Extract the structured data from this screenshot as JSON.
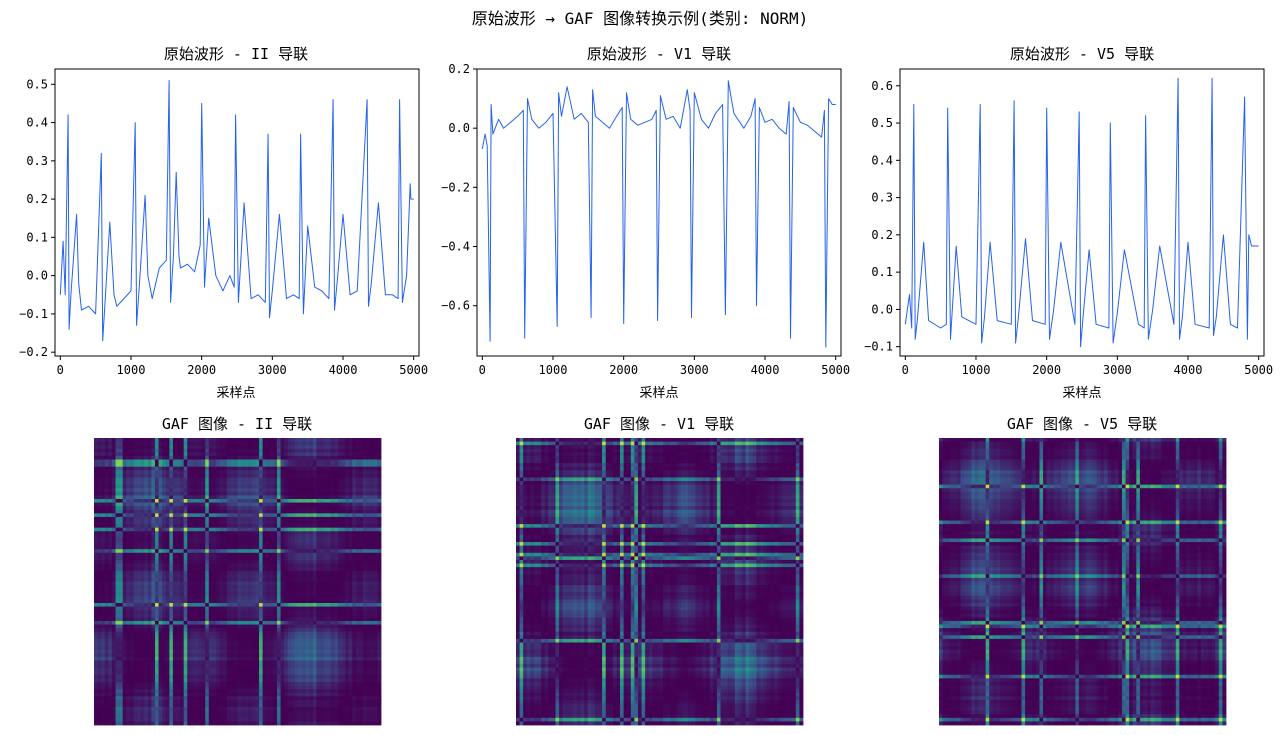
{
  "suptitle": "原始波形 → GAF 图像转换示例(类别: NORM)",
  "colors": {
    "line": "#2563eb",
    "viridis": [
      "#440154",
      "#3b528b",
      "#21918c",
      "#5ec962",
      "#fde725"
    ]
  },
  "chart_data": [
    {
      "type": "line",
      "title": "原始波形 - II 导联",
      "xlabel": "采样点",
      "ylabel": "",
      "xlim": [
        -75,
        5075
      ],
      "ylim": [
        -0.21,
        0.54
      ],
      "xticks": [
        0,
        1000,
        2000,
        3000,
        4000,
        5000
      ],
      "yticks": [
        -0.2,
        -0.1,
        0.0,
        0.1,
        0.2,
        0.3,
        0.4,
        0.5
      ],
      "ytick_labels": [
        "−0.2",
        "−0.1",
        "0.0",
        "0.1",
        "0.2",
        "0.3",
        "0.4",
        "0.5"
      ],
      "grid": false,
      "series": [
        {
          "x": [
            0,
            40,
            70,
            110,
            125,
            150,
            230,
            260,
            300,
            400,
            500,
            580,
            600,
            640,
            700,
            760,
            800,
            900,
            1000,
            1060,
            1080,
            1120,
            1200,
            1240,
            1300,
            1400,
            1500,
            1540,
            1560,
            1600,
            1640,
            1680,
            1700,
            1800,
            1900,
            1980,
            2000,
            2040,
            2100,
            2200,
            2300,
            2400,
            2460,
            2480,
            2520,
            2600,
            2700,
            2800,
            2900,
            2940,
            2960,
            3000,
            3100,
            3200,
            3300,
            3380,
            3400,
            3440,
            3500,
            3600,
            3700,
            3800,
            3860,
            3880,
            3920,
            4000,
            4100,
            4200,
            4340,
            4360,
            4400,
            4500,
            4600,
            4700,
            4780,
            4800,
            4840,
            4900,
            4950,
            4960,
            5000
          ],
          "y": [
            -0.05,
            0.09,
            -0.05,
            0.42,
            -0.14,
            -0.05,
            0.16,
            -0.02,
            -0.09,
            -0.08,
            -0.1,
            0.32,
            -0.17,
            -0.05,
            0.14,
            -0.05,
            -0.08,
            -0.06,
            -0.04,
            0.4,
            -0.13,
            -0.02,
            0.21,
            0.0,
            -0.06,
            0.02,
            0.04,
            0.51,
            -0.07,
            0.05,
            0.27,
            0.05,
            0.02,
            0.03,
            0.01,
            0.08,
            0.45,
            -0.03,
            0.15,
            0.0,
            -0.04,
            0.0,
            -0.03,
            0.42,
            -0.07,
            0.19,
            -0.06,
            -0.05,
            -0.07,
            0.37,
            -0.11,
            -0.04,
            0.16,
            -0.06,
            -0.05,
            -0.06,
            0.37,
            -0.1,
            0.13,
            -0.03,
            -0.04,
            -0.06,
            0.46,
            -0.09,
            -0.01,
            0.16,
            -0.05,
            -0.04,
            0.46,
            -0.08,
            -0.02,
            0.19,
            -0.05,
            -0.05,
            -0.06,
            0.46,
            -0.07,
            0.0,
            0.24,
            0.2,
            0.2
          ]
        }
      ]
    },
    {
      "type": "line",
      "title": "原始波形 - V1 导联",
      "xlabel": "采样点",
      "ylabel": "",
      "xlim": [
        -75,
        5075
      ],
      "ylim": [
        -0.77,
        0.2
      ],
      "xticks": [
        0,
        1000,
        2000,
        3000,
        4000,
        5000
      ],
      "yticks": [
        -0.6,
        -0.4,
        -0.2,
        0.0,
        0.2
      ],
      "ytick_labels": [
        "−0.6",
        "−0.4",
        "−0.2",
        "0.0",
        "0.2"
      ],
      "grid": false,
      "series": [
        {
          "x": [
            0,
            40,
            70,
            110,
            125,
            150,
            230,
            300,
            400,
            500,
            580,
            600,
            640,
            700,
            800,
            900,
            1000,
            1060,
            1080,
            1120,
            1200,
            1300,
            1400,
            1500,
            1540,
            1560,
            1600,
            1700,
            1800,
            1900,
            1980,
            2000,
            2040,
            2100,
            2200,
            2300,
            2400,
            2460,
            2480,
            2520,
            2600,
            2700,
            2800,
            2900,
            2940,
            2960,
            3000,
            3100,
            3200,
            3300,
            3400,
            3440,
            3480,
            3560,
            3700,
            3800,
            3860,
            3880,
            3920,
            4000,
            4100,
            4200,
            4300,
            4340,
            4360,
            4400,
            4500,
            4600,
            4700,
            4800,
            4840,
            4860,
            4900,
            4950,
            5000
          ],
          "y": [
            -0.07,
            -0.02,
            -0.06,
            -0.72,
            0.08,
            -0.02,
            0.03,
            0.0,
            0.02,
            0.04,
            0.06,
            -0.71,
            0.1,
            0.03,
            0.0,
            0.02,
            0.05,
            -0.67,
            0.12,
            0.04,
            0.14,
            0.03,
            0.05,
            0.02,
            -0.64,
            0.13,
            0.04,
            0.02,
            0.0,
            0.04,
            0.07,
            -0.66,
            0.12,
            0.03,
            0.01,
            0.02,
            0.03,
            0.06,
            -0.65,
            0.11,
            0.03,
            0.04,
            0.0,
            0.13,
            0.06,
            -0.64,
            0.12,
            0.03,
            0.0,
            0.05,
            0.08,
            -0.63,
            0.16,
            0.05,
            0.0,
            0.04,
            0.1,
            -0.6,
            0.07,
            0.02,
            0.03,
            0.0,
            -0.02,
            0.09,
            -0.71,
            0.07,
            0.02,
            0.01,
            -0.01,
            -0.03,
            0.06,
            -0.74,
            0.1,
            0.08,
            0.08
          ]
        }
      ]
    },
    {
      "type": "line",
      "title": "原始波形 - V5 导联",
      "xlabel": "采样点",
      "ylabel": "",
      "xlim": [
        -75,
        5075
      ],
      "ylim": [
        -0.125,
        0.645
      ],
      "xticks": [
        0,
        1000,
        2000,
        3000,
        4000,
        5000
      ],
      "yticks": [
        -0.1,
        0.0,
        0.1,
        0.2,
        0.3,
        0.4,
        0.5,
        0.6
      ],
      "ytick_labels": [
        "−0.1",
        "0.0",
        "0.1",
        "0.2",
        "0.3",
        "0.4",
        "0.5",
        "0.6"
      ],
      "grid": false,
      "series": [
        {
          "x": [
            0,
            60,
            90,
            120,
            140,
            170,
            260,
            330,
            500,
            580,
            600,
            640,
            720,
            800,
            1000,
            1060,
            1080,
            1120,
            1200,
            1300,
            1500,
            1540,
            1560,
            1600,
            1700,
            1800,
            1980,
            2000,
            2040,
            2100,
            2200,
            2400,
            2460,
            2480,
            2520,
            2600,
            2700,
            2880,
            2900,
            2940,
            3000,
            3100,
            3300,
            3380,
            3400,
            3440,
            3500,
            3600,
            3800,
            3860,
            3880,
            3920,
            4000,
            4100,
            4300,
            4340,
            4360,
            4400,
            4500,
            4600,
            4700,
            4800,
            4840,
            4860,
            4900,
            4950,
            5000
          ],
          "y": [
            -0.04,
            0.04,
            -0.05,
            0.55,
            -0.08,
            -0.03,
            0.18,
            -0.03,
            -0.05,
            -0.04,
            0.54,
            -0.08,
            0.17,
            -0.02,
            -0.04,
            0.55,
            -0.09,
            -0.02,
            0.18,
            -0.03,
            -0.04,
            0.56,
            -0.09,
            -0.02,
            0.19,
            -0.03,
            -0.04,
            0.54,
            -0.08,
            0.0,
            0.18,
            -0.04,
            0.53,
            -0.1,
            -0.01,
            0.16,
            -0.04,
            -0.05,
            0.5,
            -0.09,
            -0.01,
            0.16,
            -0.04,
            -0.05,
            0.52,
            -0.08,
            0.0,
            0.17,
            -0.04,
            0.62,
            -0.08,
            -0.02,
            0.18,
            -0.04,
            -0.05,
            0.62,
            -0.07,
            -0.02,
            0.2,
            -0.04,
            -0.05,
            0.57,
            -0.08,
            0.2,
            0.17,
            0.17,
            0.17
          ]
        }
      ]
    },
    {
      "type": "heatmap",
      "title": "GAF 图像 - II 导联",
      "size": 80,
      "colormap": "viridis",
      "seed": 11
    },
    {
      "type": "heatmap",
      "title": "GAF 图像 - V1 导联",
      "size": 80,
      "colormap": "viridis",
      "seed": 23
    },
    {
      "type": "heatmap",
      "title": "GAF 图像 - V5 导联",
      "size": 80,
      "colormap": "viridis",
      "seed": 37
    }
  ]
}
